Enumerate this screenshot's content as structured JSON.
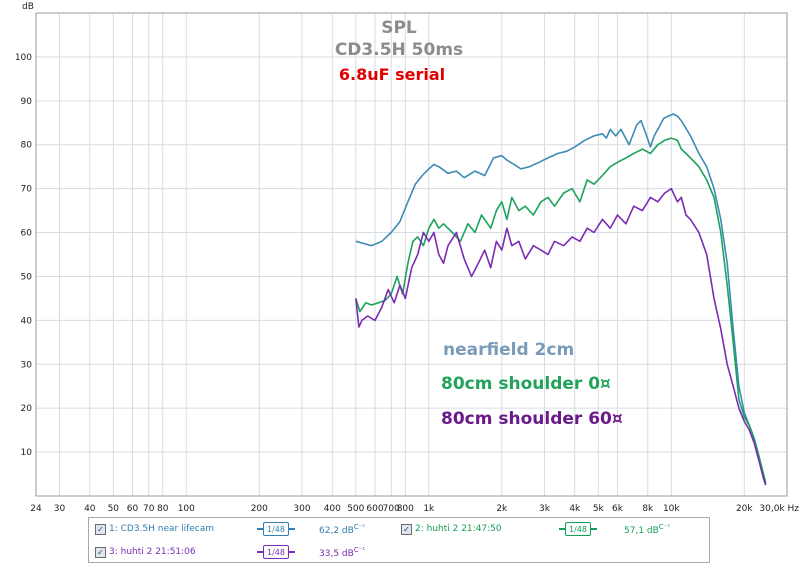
{
  "chart_data": {
    "type": "line",
    "title": "SPL",
    "subtitle": "CD3.5H 50ms",
    "annotation": "6.8uF serial",
    "ylabel": "dB",
    "xunit": "Hz",
    "xscale": "log",
    "xlim": [
      24,
      30000
    ],
    "ylim": [
      0,
      110
    ],
    "grid": true,
    "yticks": [
      10,
      20,
      30,
      40,
      50,
      60,
      70,
      80,
      90,
      100
    ],
    "xticks": [
      {
        "v": 24,
        "label": "24"
      },
      {
        "v": 30,
        "label": "30"
      },
      {
        "v": 40,
        "label": "40"
      },
      {
        "v": 50,
        "label": "50"
      },
      {
        "v": 60,
        "label": "60"
      },
      {
        "v": 70,
        "label": "70"
      },
      {
        "v": 80,
        "label": "80"
      },
      {
        "v": 100,
        "label": "100"
      },
      {
        "v": 200,
        "label": "200"
      },
      {
        "v": 300,
        "label": "300"
      },
      {
        "v": 400,
        "label": "400"
      },
      {
        "v": 500,
        "label": "500"
      },
      {
        "v": 600,
        "label": "600"
      },
      {
        "v": 700,
        "label": "700"
      },
      {
        "v": 800,
        "label": "800"
      },
      {
        "v": 1000,
        "label": "1k"
      },
      {
        "v": 2000,
        "label": "2k"
      },
      {
        "v": 3000,
        "label": "3k"
      },
      {
        "v": 4000,
        "label": "4k"
      },
      {
        "v": 5000,
        "label": "5k"
      },
      {
        "v": 6000,
        "label": "6k"
      },
      {
        "v": 8000,
        "label": "8k"
      },
      {
        "v": 10000,
        "label": "10k"
      },
      {
        "v": 20000,
        "label": "20k"
      },
      {
        "v": 30000,
        "label": "30,0k Hz"
      }
    ],
    "series": [
      {
        "name": "nearfield 2cm",
        "color": "#3d8bb5",
        "label_color": "#7a9bb8",
        "points": [
          [
            500,
            58
          ],
          [
            540,
            57.5
          ],
          [
            580,
            57
          ],
          [
            640,
            58
          ],
          [
            700,
            60
          ],
          [
            760,
            62.5
          ],
          [
            820,
            67
          ],
          [
            880,
            71
          ],
          [
            940,
            73
          ],
          [
            1000,
            74.5
          ],
          [
            1050,
            75.5
          ],
          [
            1100,
            75
          ],
          [
            1200,
            73.5
          ],
          [
            1300,
            74
          ],
          [
            1400,
            72.5
          ],
          [
            1550,
            74
          ],
          [
            1700,
            73
          ],
          [
            1850,
            77
          ],
          [
            2000,
            77.5
          ],
          [
            2100,
            76.5
          ],
          [
            2250,
            75.5
          ],
          [
            2400,
            74.5
          ],
          [
            2600,
            75
          ],
          [
            2850,
            76
          ],
          [
            3100,
            77
          ],
          [
            3400,
            78
          ],
          [
            3700,
            78.5
          ],
          [
            4000,
            79.5
          ],
          [
            4400,
            81
          ],
          [
            4800,
            82
          ],
          [
            5200,
            82.5
          ],
          [
            5400,
            81.5
          ],
          [
            5600,
            83.5
          ],
          [
            5900,
            82
          ],
          [
            6200,
            83.5
          ],
          [
            6700,
            80
          ],
          [
            7200,
            84.5
          ],
          [
            7500,
            85.5
          ],
          [
            7800,
            83
          ],
          [
            8200,
            79.5
          ],
          [
            8500,
            82
          ],
          [
            8900,
            84
          ],
          [
            9300,
            86
          ],
          [
            9700,
            86.5
          ],
          [
            10200,
            87
          ],
          [
            10600,
            86.5
          ],
          [
            11000,
            85.5
          ],
          [
            12000,
            82
          ],
          [
            13000,
            78
          ],
          [
            14000,
            75
          ],
          [
            15000,
            70
          ],
          [
            16000,
            63
          ],
          [
            17000,
            53
          ],
          [
            18000,
            38
          ],
          [
            19000,
            25
          ],
          [
            20000,
            19
          ],
          [
            21000,
            16
          ],
          [
            22000,
            13
          ],
          [
            23000,
            9
          ],
          [
            24000,
            4
          ],
          [
            24500,
            2.5
          ]
        ]
      },
      {
        "name": "80cm shoulder 0¤",
        "color": "#1aa35a",
        "label_color": "#22a35a",
        "points": [
          [
            500,
            45
          ],
          [
            520,
            42
          ],
          [
            550,
            44
          ],
          [
            580,
            43.5
          ],
          [
            620,
            44
          ],
          [
            660,
            44.5
          ],
          [
            700,
            46
          ],
          [
            740,
            50
          ],
          [
            780,
            46
          ],
          [
            820,
            53
          ],
          [
            860,
            58
          ],
          [
            900,
            59
          ],
          [
            950,
            57
          ],
          [
            1000,
            61
          ],
          [
            1050,
            63
          ],
          [
            1100,
            61
          ],
          [
            1150,
            62
          ],
          [
            1250,
            60
          ],
          [
            1350,
            58
          ],
          [
            1450,
            62
          ],
          [
            1550,
            60
          ],
          [
            1650,
            64
          ],
          [
            1800,
            61
          ],
          [
            1900,
            65
          ],
          [
            2000,
            67
          ],
          [
            2100,
            63
          ],
          [
            2200,
            68
          ],
          [
            2350,
            65
          ],
          [
            2500,
            66
          ],
          [
            2700,
            64
          ],
          [
            2900,
            67
          ],
          [
            3100,
            68
          ],
          [
            3300,
            66
          ],
          [
            3600,
            69
          ],
          [
            3900,
            70
          ],
          [
            4200,
            67
          ],
          [
            4500,
            72
          ],
          [
            4800,
            71
          ],
          [
            5200,
            73
          ],
          [
            5600,
            75
          ],
          [
            6000,
            76
          ],
          [
            6500,
            77
          ],
          [
            7000,
            78
          ],
          [
            7600,
            79
          ],
          [
            8200,
            78
          ],
          [
            8800,
            80
          ],
          [
            9400,
            81
          ],
          [
            10000,
            81.5
          ],
          [
            10600,
            81
          ],
          [
            11000,
            79
          ],
          [
            11500,
            78
          ],
          [
            12000,
            77
          ],
          [
            13000,
            75
          ],
          [
            14000,
            72
          ],
          [
            15000,
            68
          ],
          [
            16000,
            60
          ],
          [
            17000,
            48
          ],
          [
            18000,
            35
          ],
          [
            19000,
            22
          ],
          [
            20000,
            18
          ],
          [
            21000,
            16
          ],
          [
            22000,
            13
          ],
          [
            23000,
            9
          ],
          [
            24000,
            5
          ],
          [
            24500,
            3
          ]
        ]
      },
      {
        "name": "80cm shoulder 60¤",
        "color": "#7b2bb3",
        "label_color": "#6b1a8a",
        "points": [
          [
            500,
            45
          ],
          [
            515,
            38.5
          ],
          [
            530,
            40
          ],
          [
            560,
            41
          ],
          [
            600,
            40
          ],
          [
            640,
            43
          ],
          [
            680,
            47
          ],
          [
            720,
            44
          ],
          [
            760,
            48
          ],
          [
            800,
            45
          ],
          [
            850,
            52
          ],
          [
            900,
            55
          ],
          [
            950,
            60
          ],
          [
            1000,
            58
          ],
          [
            1050,
            60
          ],
          [
            1100,
            55
          ],
          [
            1150,
            53
          ],
          [
            1200,
            57
          ],
          [
            1300,
            60
          ],
          [
            1400,
            54
          ],
          [
            1500,
            50
          ],
          [
            1600,
            53
          ],
          [
            1700,
            56
          ],
          [
            1800,
            52
          ],
          [
            1900,
            58
          ],
          [
            2000,
            56
          ],
          [
            2100,
            61
          ],
          [
            2200,
            57
          ],
          [
            2350,
            58
          ],
          [
            2500,
            54
          ],
          [
            2700,
            57
          ],
          [
            2900,
            56
          ],
          [
            3100,
            55
          ],
          [
            3300,
            58
          ],
          [
            3600,
            57
          ],
          [
            3900,
            59
          ],
          [
            4200,
            58
          ],
          [
            4500,
            61
          ],
          [
            4800,
            60
          ],
          [
            5200,
            63
          ],
          [
            5600,
            61
          ],
          [
            6000,
            64
          ],
          [
            6500,
            62
          ],
          [
            7000,
            66
          ],
          [
            7600,
            65
          ],
          [
            8200,
            68
          ],
          [
            8800,
            67
          ],
          [
            9400,
            69
          ],
          [
            10000,
            70
          ],
          [
            10600,
            67
          ],
          [
            11000,
            68
          ],
          [
            11500,
            64
          ],
          [
            12000,
            63
          ],
          [
            13000,
            60
          ],
          [
            14000,
            55
          ],
          [
            15000,
            45
          ],
          [
            16000,
            38
          ],
          [
            17000,
            30
          ],
          [
            18000,
            25
          ],
          [
            19000,
            20
          ],
          [
            20000,
            17
          ],
          [
            21000,
            15
          ],
          [
            22000,
            12
          ],
          [
            23000,
            8
          ],
          [
            24000,
            4
          ],
          [
            24500,
            2.5
          ]
        ]
      }
    ]
  },
  "legend": {
    "entries": [
      {
        "label": "1: CD3.5H near lifecam",
        "smoothing": "1/48",
        "level": "62,2 dB",
        "unit": "C⁻¹",
        "color": "#2f7fb0"
      },
      {
        "label": "2: huhti 2 21:47:50",
        "smoothing": "1/48",
        "level": "57,1 dB",
        "unit": "C⁻¹",
        "color": "#15a05a"
      },
      {
        "label": "3: huhti 2 21:51:06",
        "smoothing": "1/48",
        "level": "33,5 dB",
        "unit": "C⁻¹",
        "color": "#7b2bb3"
      }
    ],
    "check": "✓"
  }
}
